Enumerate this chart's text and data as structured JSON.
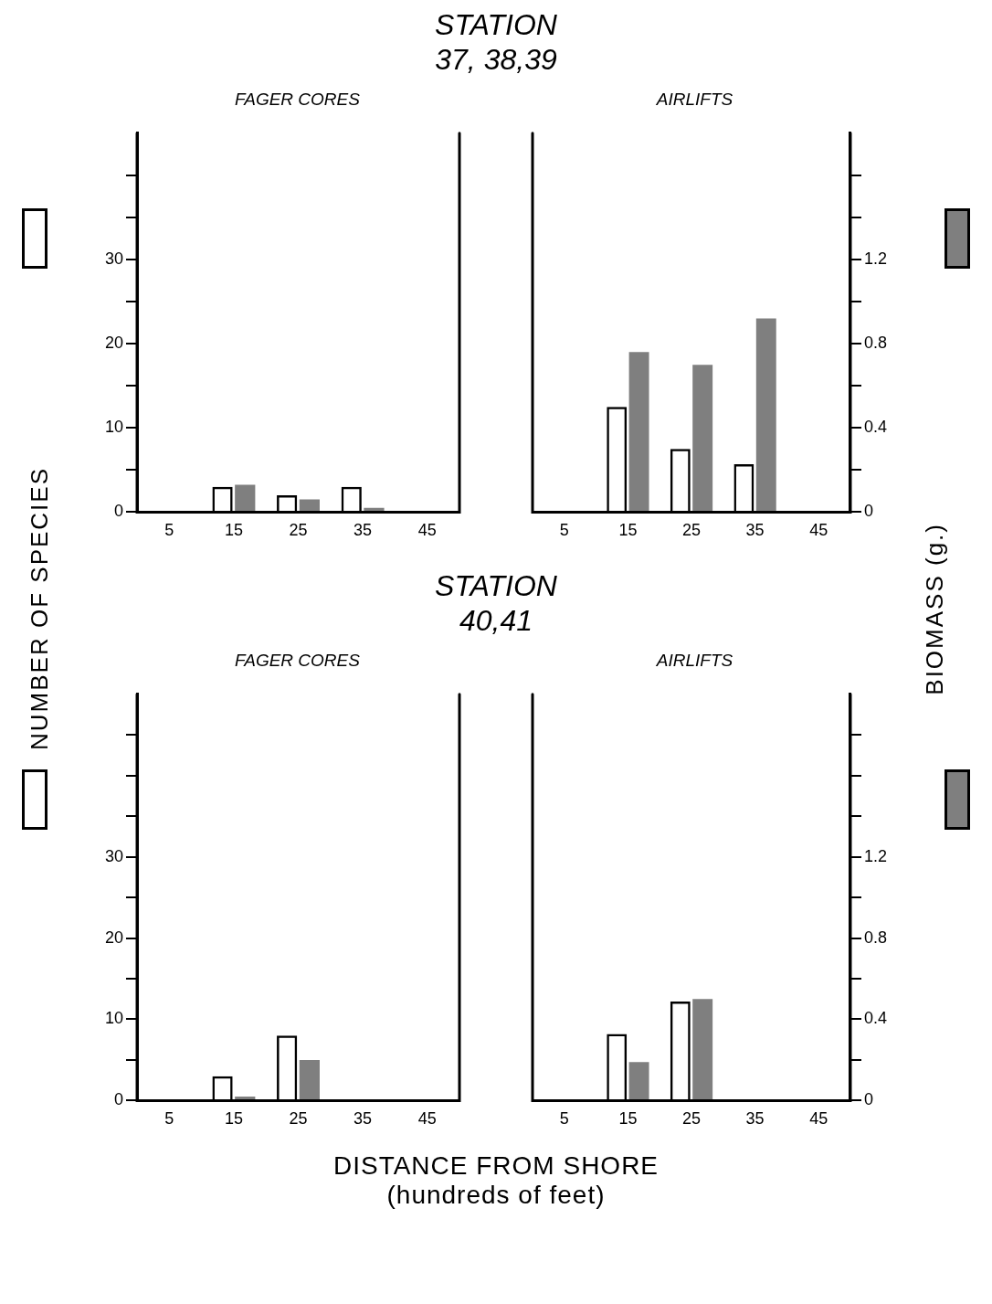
{
  "chart_data": [
    {
      "type": "bar",
      "title": "STATION\n37, 38,39",
      "subtitle": "FAGER CORES",
      "ylabel": "NUMBER OF SPECIES",
      "categories": [
        "5",
        "15",
        "25",
        "35",
        "45"
      ],
      "series": [
        {
          "color": "#000000",
          "values": [
            null,
            3,
            2,
            3,
            null
          ]
        },
        {
          "color": "#7f7f7f",
          "axis": "y2",
          "values": [
            null,
            0.13,
            0.06,
            0.02,
            null
          ]
        }
      ],
      "ylim": [
        0,
        45
      ],
      "yticks": [
        0,
        {
          "value": 5,
          "label": null
        },
        10,
        {
          "value": 15,
          "label": null
        },
        20,
        {
          "value": 25,
          "label": null
        },
        30,
        {
          "value": 35,
          "label": null
        },
        {
          "value": 40,
          "label": null
        }
      ],
      "y2lim": [
        0,
        1.8
      ],
      "tick_labels": [
        "x",
        "y"
      ]
    },
    {
      "type": "bar",
      "subtitle": "AIRLIFTS",
      "y2label": "BIOMASS (g.)",
      "categories": [
        "5",
        "15",
        "25",
        "35",
        "45"
      ],
      "series": [
        {
          "color": "#000000",
          "values": [
            null,
            12.5,
            7.5,
            5.7,
            null
          ]
        },
        {
          "color": "#7f7f7f",
          "axis": "y2",
          "values": [
            null,
            0.76,
            0.7,
            0.92,
            null
          ]
        }
      ],
      "ylim": [
        0,
        45
      ],
      "y2lim": [
        0,
        1.8
      ],
      "y2ticks": [
        0,
        {
          "value": 0.2,
          "label": null
        },
        0.4,
        {
          "value": 0.6,
          "label": null
        },
        0.8,
        {
          "value": 1,
          "label": null
        },
        1.2,
        {
          "value": 1.4,
          "label": null
        },
        {
          "value": 1.6,
          "label": null
        }
      ],
      "tick_labels": [
        "x",
        "y2"
      ]
    },
    {
      "type": "bar",
      "title": "STATION\n40,41",
      "subtitle": "FAGER CORES",
      "categories": [
        "5",
        "15",
        "25",
        "35",
        "45"
      ],
      "series": [
        {
          "color": "#000000",
          "values": [
            null,
            3,
            8,
            null,
            null
          ]
        },
        {
          "color": "#7f7f7f",
          "axis": "y2",
          "values": [
            null,
            0.02,
            0.2,
            null,
            null
          ]
        }
      ],
      "ylim": [
        0,
        50
      ],
      "yticks": [
        0,
        {
          "value": 5,
          "label": null
        },
        10,
        {
          "value": 15,
          "label": null
        },
        20,
        {
          "value": 25,
          "label": null
        },
        30,
        {
          "value": 35,
          "label": null
        },
        {
          "value": 40,
          "label": null
        },
        {
          "value": 45,
          "label": null
        }
      ],
      "y2lim": [
        0,
        2
      ],
      "tick_labels": [
        "x",
        "y"
      ]
    },
    {
      "type": "bar",
      "subtitle": "AIRLIFTS",
      "xlabel": "DISTANCE FROM SHORE\n(hundreds of feet)",
      "categories": [
        "5",
        "15",
        "25",
        "35",
        "45"
      ],
      "series": [
        {
          "color": "#000000",
          "values": [
            null,
            8.2,
            12.2,
            null,
            null
          ]
        },
        {
          "color": "#7f7f7f",
          "axis": "y2",
          "values": [
            null,
            0.19,
            0.5,
            null,
            null
          ]
        }
      ],
      "ylim": [
        0,
        50
      ],
      "y2lim": [
        0,
        2
      ],
      "y2ticks": [
        0,
        {
          "value": 0.2,
          "label": null
        },
        0.4,
        {
          "value": 0.6,
          "label": null
        },
        0.8,
        {
          "value": 1,
          "label": null
        },
        1.2,
        {
          "value": 1.4,
          "label": null
        },
        {
          "value": 1.6,
          "label": null
        },
        {
          "value": 1.8,
          "label": null
        }
      ],
      "tick_labels": [
        "x",
        "y2"
      ]
    }
  ]
}
